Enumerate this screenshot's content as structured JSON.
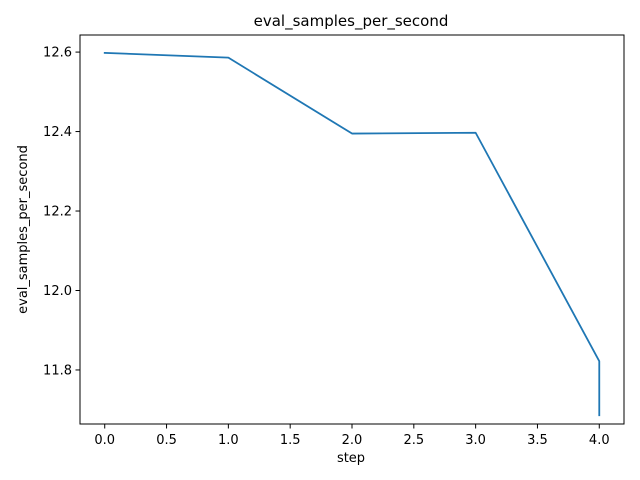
{
  "chart_data": {
    "type": "line",
    "title": "eval_samples_per_second",
    "xlabel": "step",
    "ylabel": "eval_samples_per_second",
    "xlim": [
      -0.2,
      4.2
    ],
    "ylim": [
      11.664,
      12.643
    ],
    "x_ticks": [
      0.0,
      0.5,
      1.0,
      1.5,
      2.0,
      2.5,
      3.0,
      3.5,
      4.0
    ],
    "x_tick_labels": [
      "0.0",
      "0.5",
      "1.0",
      "1.5",
      "2.0",
      "2.5",
      "3.0",
      "3.5",
      "4.0"
    ],
    "y_ticks": [
      11.8,
      12.0,
      12.2,
      12.4,
      12.6
    ],
    "y_tick_labels": [
      "11.8",
      "12.0",
      "12.2",
      "12.4",
      "12.6"
    ],
    "grid": false,
    "series": [
      {
        "color": "#1f77b4",
        "x": [
          0,
          1,
          2,
          3,
          4,
          4
        ],
        "y": [
          12.598,
          12.586,
          12.395,
          12.397,
          11.822,
          11.686
        ]
      }
    ]
  }
}
